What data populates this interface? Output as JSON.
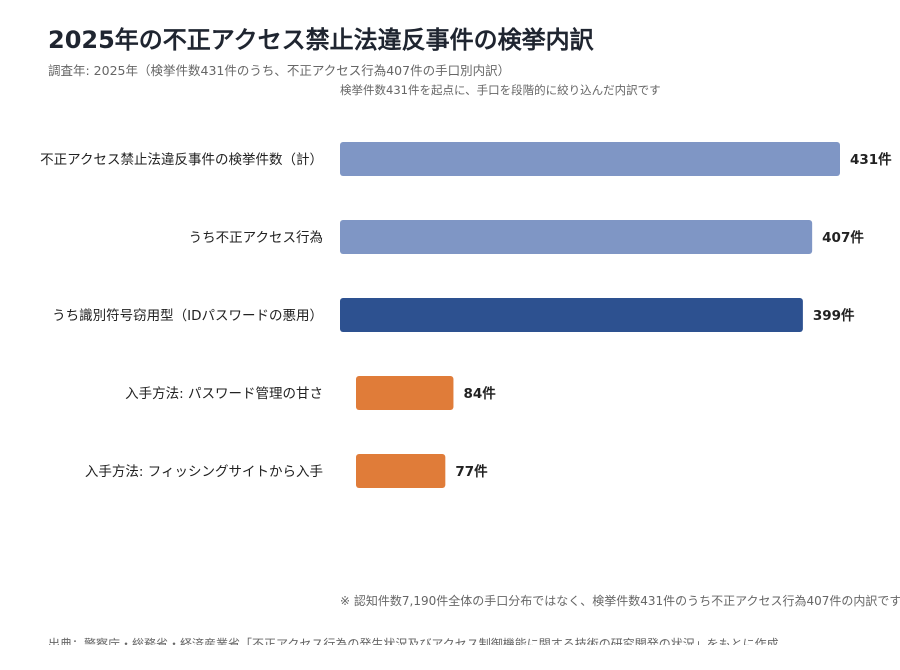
{
  "header": {
    "title": "2025年の不正アクセス禁止法違反事件の検挙内訳",
    "subtitle": "調査年: 2025年（検挙件数431件のうち、不正アクセス行為407件の手口別内訳）",
    "note": "検挙件数431件を起点に、手口を段階的に絞り込んだ内訳です"
  },
  "footer": {
    "footnote": "※ 認知件数7,190件全体の手口分布ではなく、検挙件数431件のうち不正アクセス行為407件の内訳です",
    "source": "出典：警察庁・総務省・経済産業省「不正アクセス行為の発生状況及びアクセス制御機能に関する技術の研究開発の状況」をもとに作成"
  },
  "chart_data": {
    "type": "bar",
    "orientation": "horizontal",
    "title": "2025年の不正アクセス禁止法違反事件の検挙内訳",
    "value_suffix": "件",
    "grid": false,
    "categories": [
      "不正アクセス禁止法違反事件の検挙件数（計）",
      "うち不正アクセス行為",
      "うち識別符号窃用型（IDパスワードの悪用）",
      "入手方法: パスワード管理の甘さ",
      "入手方法: フィッシングサイトから入手"
    ],
    "values": [
      431,
      407,
      399,
      84,
      77
    ],
    "colors": [
      "#7f96c5",
      "#7f96c5",
      "#2d5190",
      "#e07c39",
      "#e07c39"
    ],
    "indent": [
      0,
      0,
      0,
      1,
      1
    ]
  }
}
